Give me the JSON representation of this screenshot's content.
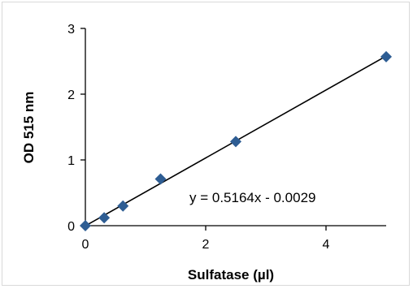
{
  "chart_data": {
    "type": "scatter",
    "title": "",
    "xlabel": "Sulfatase (µl)",
    "ylabel": "OD 515 nm",
    "xlim": [
      0,
      5
    ],
    "ylim": [
      0,
      3
    ],
    "x_ticks": [
      0,
      2,
      4
    ],
    "y_ticks": [
      0,
      1,
      2,
      3
    ],
    "grid": false,
    "legend": "none",
    "marker": "diamond",
    "marker_color": "#2e5d93",
    "line_color": "#000000",
    "series": [
      {
        "x": [
          0,
          0.3125,
          0.625,
          1.25,
          2.5,
          5
        ],
        "y": [
          0,
          0.12,
          0.3,
          0.71,
          1.28,
          2.57
        ]
      }
    ],
    "trendline": {
      "type": "linear",
      "slope": 0.5164,
      "intercept": -0.0029,
      "equation_label": "y = 0.5164x - 0.0029"
    }
  }
}
